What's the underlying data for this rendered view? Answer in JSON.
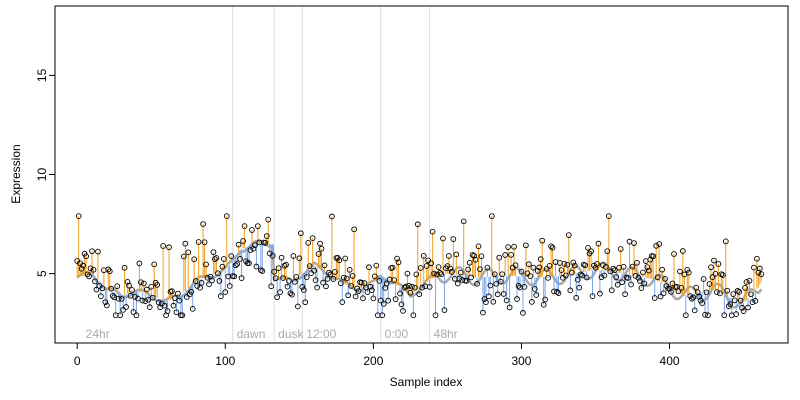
{
  "chart_data": {
    "type": "scatter",
    "title": "",
    "xlabel": "Sample index",
    "ylabel": "Expression",
    "xlim": [
      -15,
      480
    ],
    "ylim": [
      1.5,
      18.5
    ],
    "xticks": [
      0,
      100,
      200,
      300,
      400
    ],
    "yticks": [
      5,
      10,
      15
    ],
    "annotations": [
      {
        "text": "24hr",
        "x": 3
      },
      {
        "text": "dawn",
        "x": 105
      },
      {
        "text": "dusk",
        "x": 133
      },
      {
        "text": "12:00",
        "x": 152
      },
      {
        "text": "0:00",
        "x": 205
      },
      {
        "text": "48hr",
        "x": 238
      }
    ],
    "vlines": [
      105,
      133,
      152,
      205,
      238
    ],
    "trend_anchors": [
      {
        "x": 0,
        "y": 4.8
      },
      {
        "x": 10,
        "y": 5.0
      },
      {
        "x": 20,
        "y": 4.2
      },
      {
        "x": 30,
        "y": 3.9
      },
      {
        "x": 40,
        "y": 4.1
      },
      {
        "x": 50,
        "y": 3.9
      },
      {
        "x": 60,
        "y": 3.6
      },
      {
        "x": 70,
        "y": 3.9
      },
      {
        "x": 80,
        "y": 4.6
      },
      {
        "x": 90,
        "y": 4.9
      },
      {
        "x": 100,
        "y": 5.2
      },
      {
        "x": 105,
        "y": 5.6
      },
      {
        "x": 110,
        "y": 6.2
      },
      {
        "x": 120,
        "y": 6.5
      },
      {
        "x": 132,
        "y": 6.5
      },
      {
        "x": 133,
        "y": 4.8
      },
      {
        "x": 145,
        "y": 4.6
      },
      {
        "x": 152,
        "y": 5.0
      },
      {
        "x": 160,
        "y": 5.4
      },
      {
        "x": 170,
        "y": 5.0
      },
      {
        "x": 180,
        "y": 4.5
      },
      {
        "x": 190,
        "y": 4.2
      },
      {
        "x": 200,
        "y": 4.5
      },
      {
        "x": 205,
        "y": 4.9
      },
      {
        "x": 215,
        "y": 4.5
      },
      {
        "x": 225,
        "y": 3.9
      },
      {
        "x": 238,
        "y": 4.7
      },
      {
        "x": 250,
        "y": 5.0
      },
      {
        "x": 270,
        "y": 4.8
      },
      {
        "x": 290,
        "y": 4.9
      },
      {
        "x": 310,
        "y": 4.8
      },
      {
        "x": 330,
        "y": 4.9
      },
      {
        "x": 350,
        "y": 5.2
      },
      {
        "x": 370,
        "y": 5.0
      },
      {
        "x": 390,
        "y": 4.7
      },
      {
        "x": 400,
        "y": 4.3
      },
      {
        "x": 410,
        "y": 3.9
      },
      {
        "x": 420,
        "y": 4.0
      },
      {
        "x": 430,
        "y": 4.2
      },
      {
        "x": 440,
        "y": 3.8
      },
      {
        "x": 450,
        "y": 3.5
      },
      {
        "x": 460,
        "y": 4.3
      },
      {
        "x": 462,
        "y": 4.6
      }
    ],
    "noise_amplitude": 1.1,
    "n_points": 463,
    "colors": {
      "above": "#f0a020",
      "below": "#7aa6e6",
      "trend": "#a9a9a9",
      "vline": "#dcdcdc",
      "annotation": "#aaaaaa",
      "point_stroke": "#000000"
    },
    "grid": false,
    "legend": "none"
  }
}
